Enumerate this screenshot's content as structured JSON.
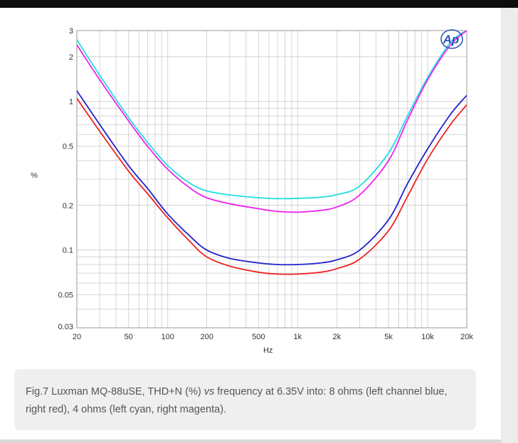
{
  "caption": {
    "prefix": "Fig.7 Luxman MQ-88uSE, THD+N (%) ",
    "vs": "vs",
    "suffix": " frequency at 6.35V into: 8 ohms (left channel blue, right red), 4 ohms (left cyan, right magenta)."
  },
  "logo": {
    "text": "Ap"
  },
  "chart_data": {
    "type": "line",
    "xlabel": "Hz",
    "ylabel": "%",
    "xscale": "log",
    "yscale": "log",
    "xlim": [
      20,
      20000
    ],
    "ylim": [
      0.03,
      3
    ],
    "grid": true,
    "legend": "none",
    "x_ticks": [
      {
        "value": 20,
        "label": "20"
      },
      {
        "value": 50,
        "label": "50"
      },
      {
        "value": 100,
        "label": "100"
      },
      {
        "value": 200,
        "label": "200"
      },
      {
        "value": 500,
        "label": "500"
      },
      {
        "value": 1000,
        "label": "1k"
      },
      {
        "value": 2000,
        "label": "2k"
      },
      {
        "value": 5000,
        "label": "5k"
      },
      {
        "value": 10000,
        "label": "10k"
      },
      {
        "value": 20000,
        "label": "20k"
      }
    ],
    "y_ticks": [
      {
        "value": 0.03,
        "label": "0.03"
      },
      {
        "value": 0.05,
        "label": "0.05"
      },
      {
        "value": 0.1,
        "label": "0.1"
      },
      {
        "value": 0.2,
        "label": "0.2"
      },
      {
        "value": 0.5,
        "label": "0.5"
      },
      {
        "value": 1,
        "label": "1"
      },
      {
        "value": 2,
        "label": "2"
      },
      {
        "value": 3,
        "label": "3"
      }
    ],
    "x": [
      20,
      30,
      50,
      70,
      100,
      150,
      200,
      300,
      500,
      700,
      1000,
      1500,
      2000,
      3000,
      5000,
      7000,
      10000,
      15000,
      20000
    ],
    "series": [
      {
        "color": "#2222cc",
        "values": [
          1.18,
          0.7,
          0.37,
          0.26,
          0.175,
          0.123,
          0.1,
          0.088,
          0.082,
          0.08,
          0.08,
          0.082,
          0.086,
          0.1,
          0.16,
          0.28,
          0.48,
          0.82,
          1.1
        ]
      },
      {
        "color": "#ee2222",
        "values": [
          1.05,
          0.63,
          0.34,
          0.24,
          0.165,
          0.113,
          0.09,
          0.078,
          0.071,
          0.069,
          0.069,
          0.071,
          0.075,
          0.087,
          0.135,
          0.23,
          0.41,
          0.7,
          0.95
        ]
      },
      {
        "color": "#22dddd",
        "values": [
          2.6,
          1.5,
          0.78,
          0.53,
          0.37,
          0.28,
          0.25,
          0.235,
          0.225,
          0.222,
          0.223,
          0.227,
          0.236,
          0.27,
          0.45,
          0.8,
          1.45,
          2.5,
          3.0
        ]
      },
      {
        "color": "#ee22ee",
        "values": [
          2.4,
          1.4,
          0.74,
          0.5,
          0.35,
          0.26,
          0.225,
          0.205,
          0.19,
          0.182,
          0.18,
          0.185,
          0.195,
          0.235,
          0.4,
          0.75,
          1.4,
          2.4,
          3.0
        ]
      }
    ]
  }
}
